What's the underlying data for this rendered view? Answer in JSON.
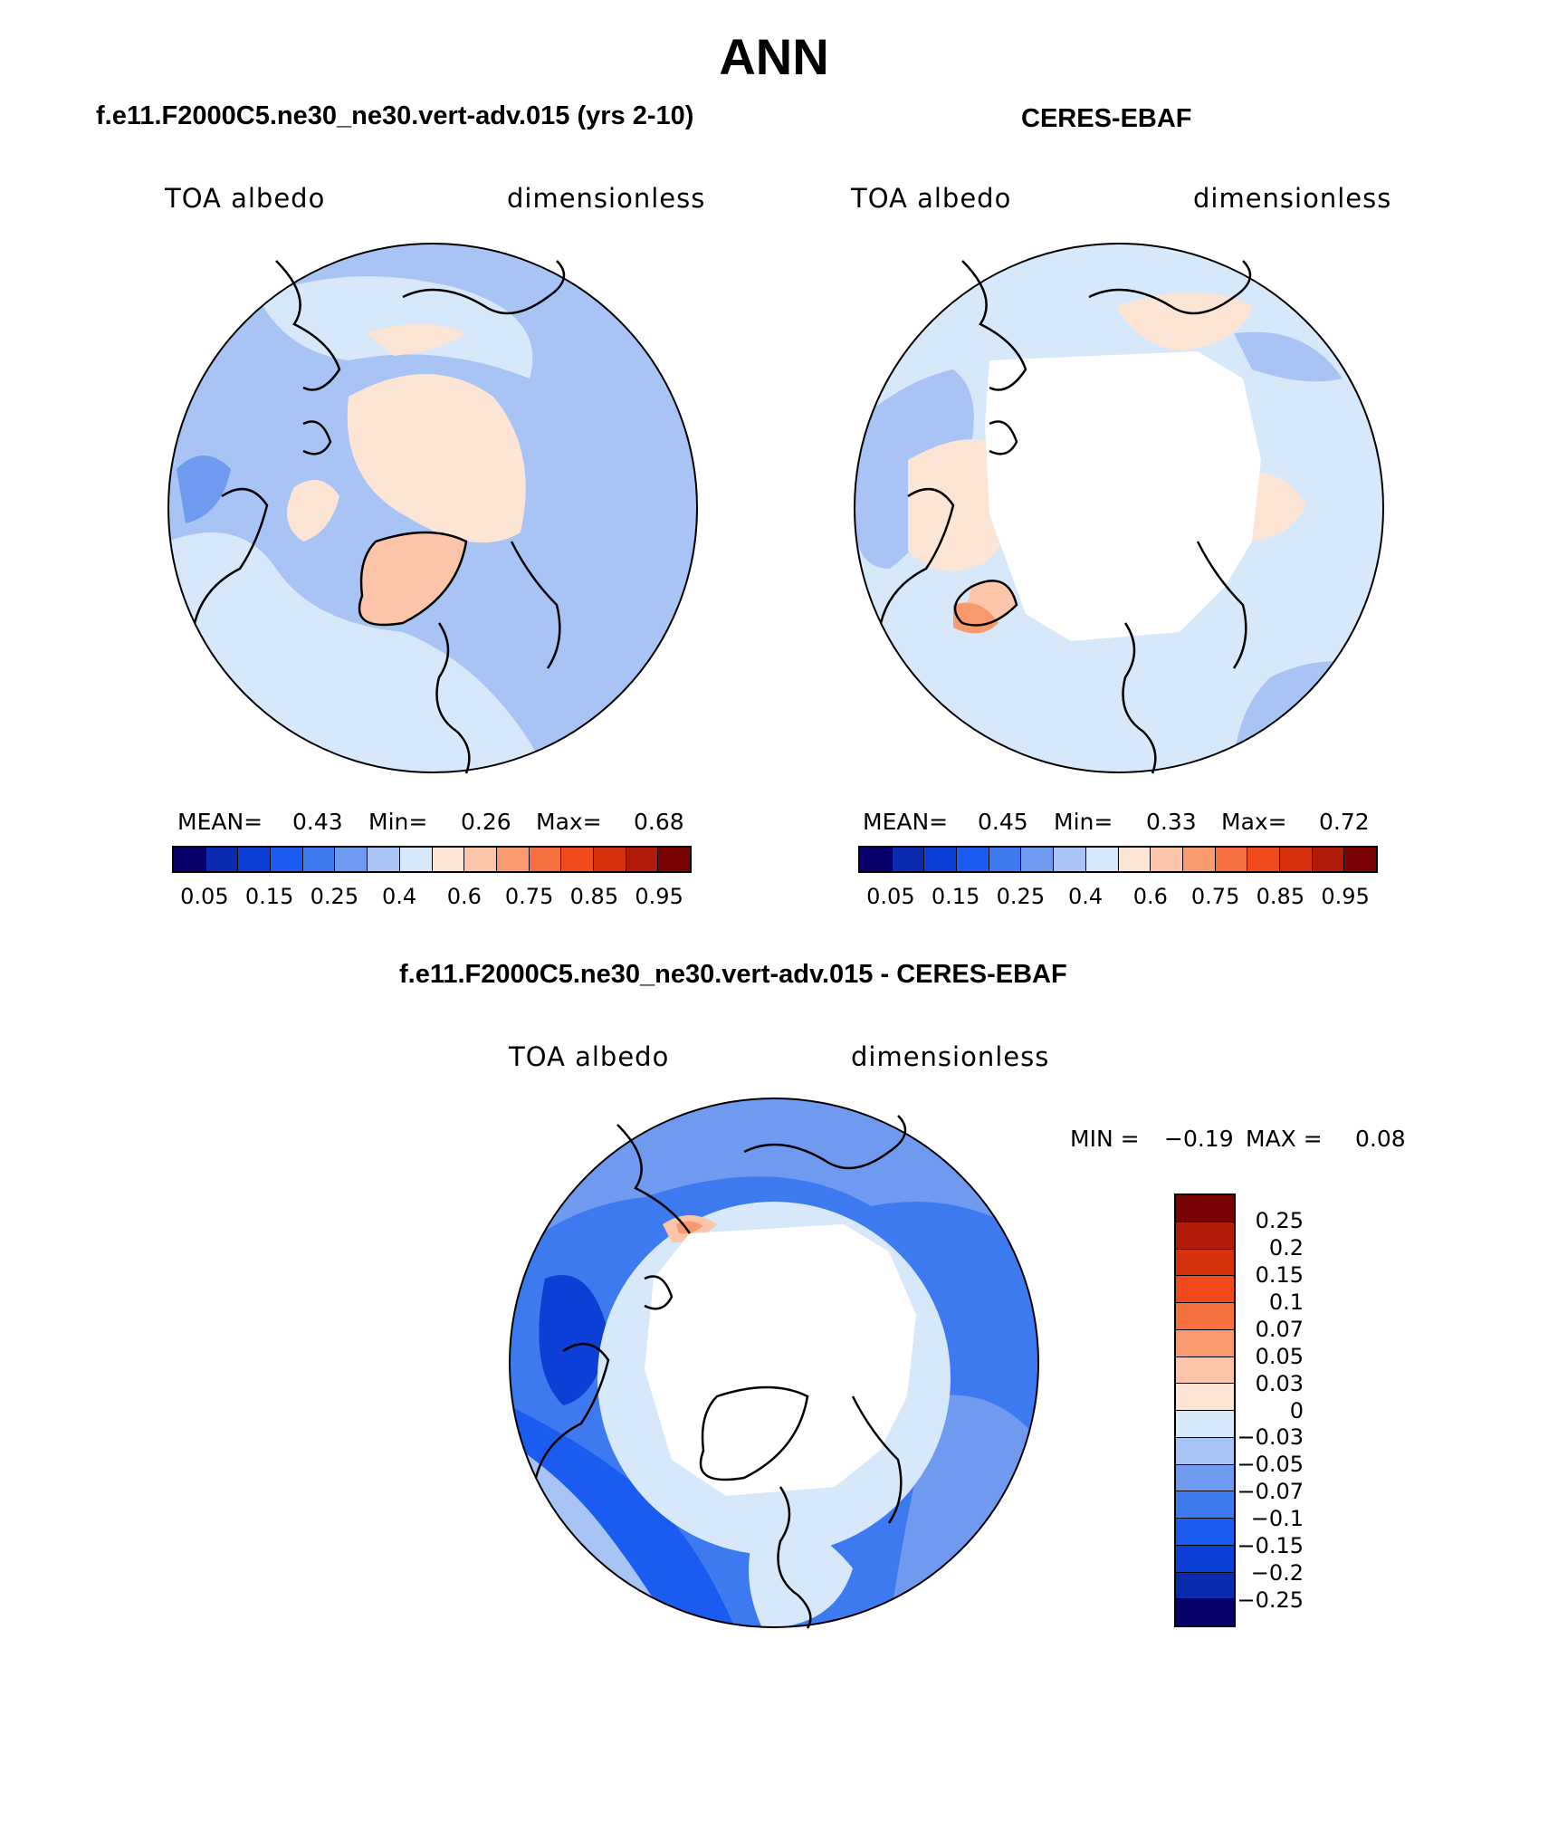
{
  "main_title": "ANN",
  "panels": [
    {
      "title": "f.e11.F2000C5.ne30_ne30.vert-adv.015 (yrs 2-10)",
      "left_label": "TOA albedo",
      "right_label": "dimensionless",
      "stats": {
        "mean_label": "MEAN=",
        "mean": "0.43",
        "min_label": "Min=",
        "min": "0.26",
        "max_label": "Max=",
        "max": "0.68"
      }
    },
    {
      "title": "CERES-EBAF",
      "left_label": "TOA albedo",
      "right_label": "dimensionless",
      "stats": {
        "mean_label": "MEAN=",
        "mean": "0.45",
        "min_label": "Min=",
        "min": "0.33",
        "max_label": "Max=",
        "max": "0.72"
      }
    },
    {
      "title": "f.e11.F2000C5.ne30_ne30.vert-adv.015 - CERES-EBAF",
      "left_label": "TOA albedo",
      "right_label": "dimensionless",
      "stats": {
        "min_label": "MIN =",
        "min": "−0.19",
        "max_label": "MAX =",
        "max": "0.08"
      }
    }
  ],
  "colorbar_abs": {
    "colors": [
      "#08006b",
      "#0a2ab0",
      "#0c3fd6",
      "#1a5cf0",
      "#3d7af0",
      "#6f9af0",
      "#a8c4f5",
      "#d8e8fb",
      "#fde5d6",
      "#fcc4a8",
      "#f99a6e",
      "#f6703f",
      "#f04a1c",
      "#d6300c",
      "#b01c08",
      "#7a0404"
    ],
    "ticks": [
      "0.05",
      "0.15",
      "0.25",
      "0.4",
      "0.6",
      "0.75",
      "0.85",
      "0.95"
    ]
  },
  "colorbar_diff": {
    "colors": [
      "#7a0404",
      "#b01c08",
      "#d6300c",
      "#f04a1c",
      "#f6703f",
      "#f99a6e",
      "#fcc4a8",
      "#fde5d6",
      "#d8e8fb",
      "#a8c4f5",
      "#6f9af0",
      "#3d7af0",
      "#1a5cf0",
      "#0c3fd6",
      "#0a2ab0",
      "#08006b"
    ],
    "ticks": [
      "0.25",
      "0.2",
      "0.15",
      "0.1",
      "0.07",
      "0.05",
      "0.03",
      "0",
      "−0.03",
      "−0.05",
      "−0.07",
      "−0.1",
      "−0.15",
      "−0.2",
      "−0.25"
    ]
  }
}
